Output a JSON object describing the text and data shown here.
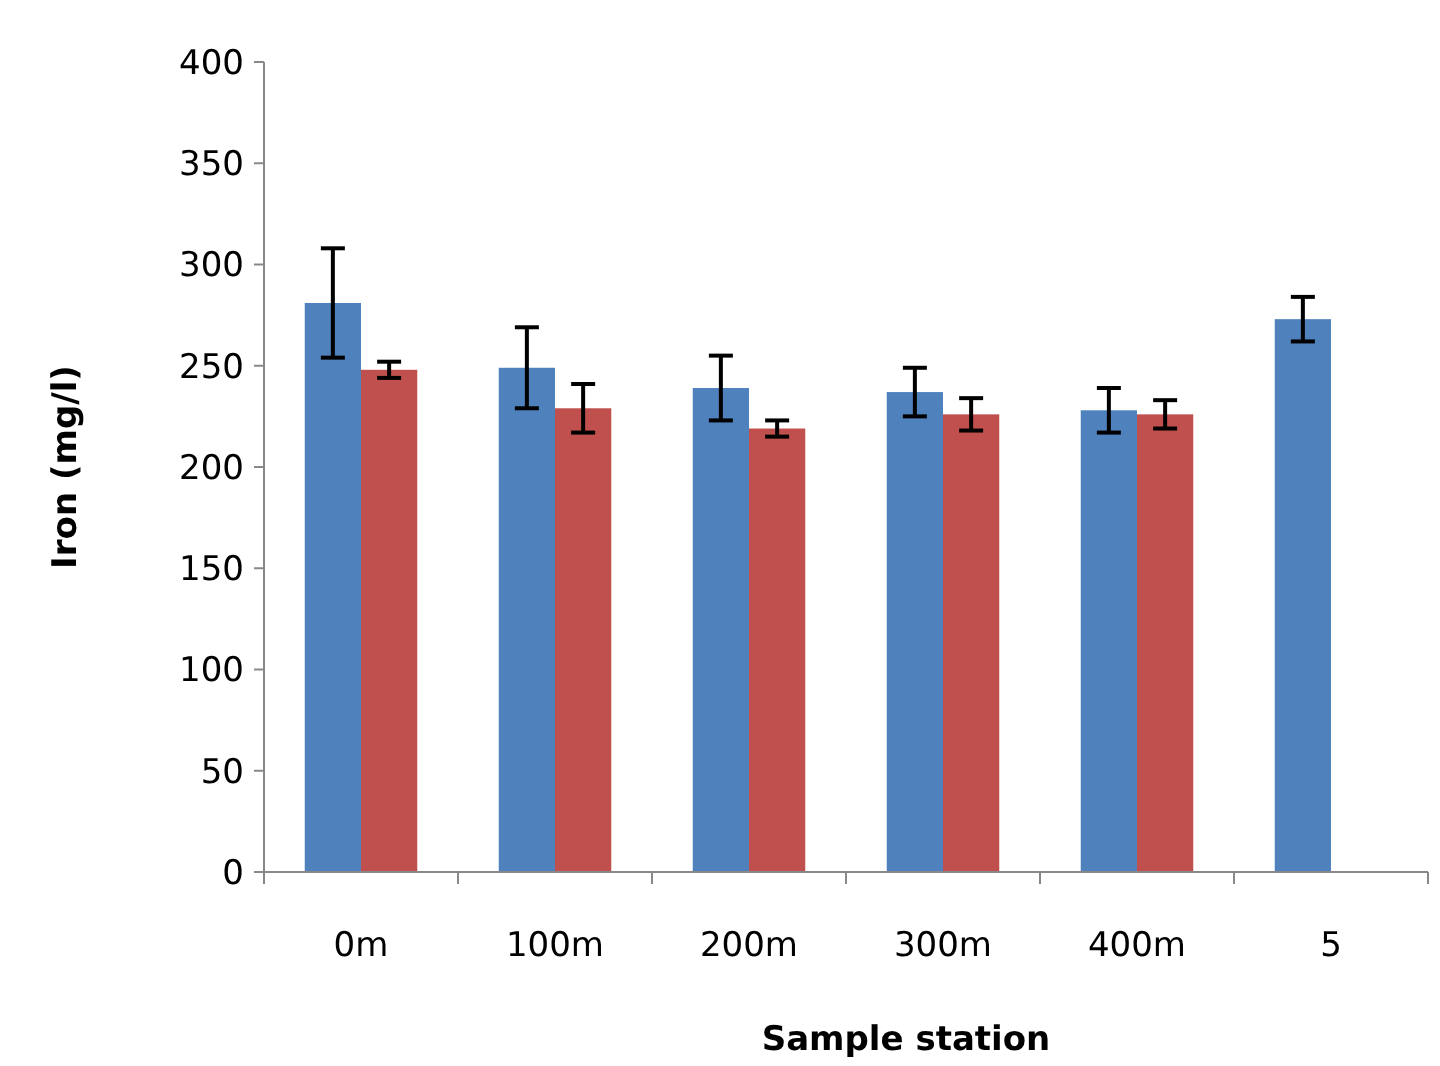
{
  "chart_data": {
    "type": "bar",
    "xlabel": "Sample station",
    "ylabel": "Iron (mg/l)",
    "categories": [
      "0m",
      "100m",
      "200m",
      "300m",
      "400m",
      "5"
    ],
    "series": [
      {
        "color": "#4f81bd",
        "values": [
          281,
          249,
          239,
          237,
          228,
          273
        ],
        "errors": [
          27,
          20,
          16,
          12,
          11,
          11
        ]
      },
      {
        "color": "#c0504d",
        "values": [
          248,
          229,
          219,
          226,
          226,
          null
        ],
        "errors": [
          4,
          12,
          4,
          8,
          7,
          null
        ]
      }
    ],
    "ylim": [
      0,
      400
    ],
    "yticks": [
      0,
      50,
      100,
      150,
      200,
      250,
      300,
      350,
      400
    ]
  }
}
